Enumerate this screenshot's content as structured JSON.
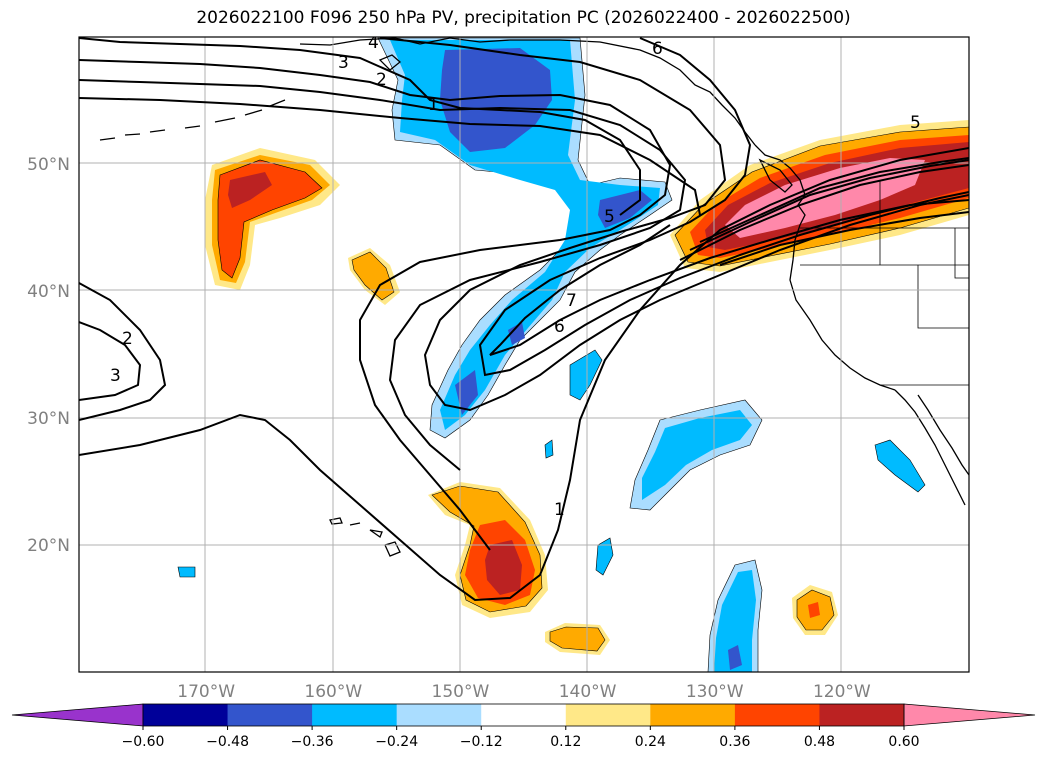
{
  "title": "2026022100 F096 250 hPa PV, precipitation PC (2026022400 - 2026022500)",
  "map": {
    "lon_range": [
      -180,
      -110
    ],
    "lat_range": [
      10,
      60
    ],
    "lon_ticks": [
      {
        "value": -170,
        "label": "170°W"
      },
      {
        "value": -160,
        "label": "160°W"
      },
      {
        "value": -150,
        "label": "150°W"
      },
      {
        "value": -140,
        "label": "140°W"
      },
      {
        "value": -130,
        "label": "130°W"
      },
      {
        "value": -120,
        "label": "120°W"
      }
    ],
    "lat_ticks": [
      {
        "value": 20,
        "label": "20°N"
      },
      {
        "value": 30,
        "label": "30°N"
      },
      {
        "value": 40,
        "label": "40°N"
      },
      {
        "value": 50,
        "label": "50°N"
      }
    ],
    "grid": true,
    "contour_labels": [
      "1",
      "2",
      "3",
      "4",
      "5",
      "6",
      "7"
    ]
  },
  "colorbar": {
    "levels": [
      "-0.60",
      "-0.48",
      "-0.36",
      "-0.24",
      "-0.12",
      "0.12",
      "0.24",
      "0.36",
      "0.48",
      "0.60"
    ],
    "colors": [
      "#9933cc",
      "#000099",
      "#3355cc",
      "#00bbff",
      "#aaddff",
      "#ffffff",
      "#ffe888",
      "#ffaa00",
      "#ff4400",
      "#bb2222",
      "#ff88aa"
    ],
    "extend": "both"
  }
}
